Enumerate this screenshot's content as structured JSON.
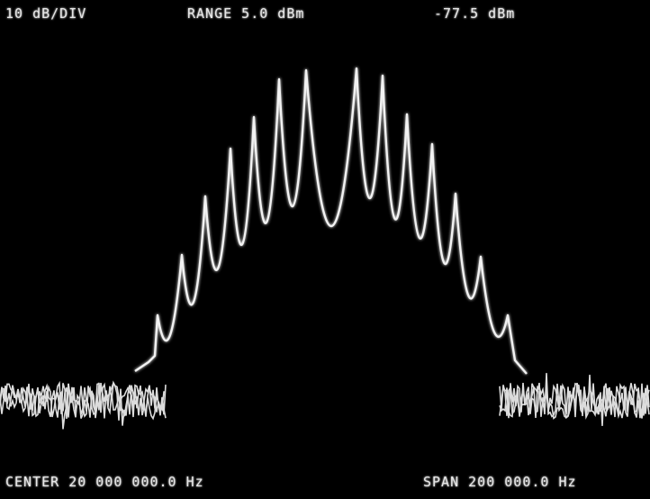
{
  "top_bar": {
    "scale": "10 dB/DIV",
    "range": "RANGE 5.0 dBm",
    "reference": "-77.5 dBm"
  },
  "bottom_bar": {
    "center": "CENTER 20 000 000.0 Hz",
    "span": "SPAN 200 000.0 Hz"
  },
  "trace": {
    "color": "#f2f2f2",
    "noise_color": "#dcdcdc"
  }
}
